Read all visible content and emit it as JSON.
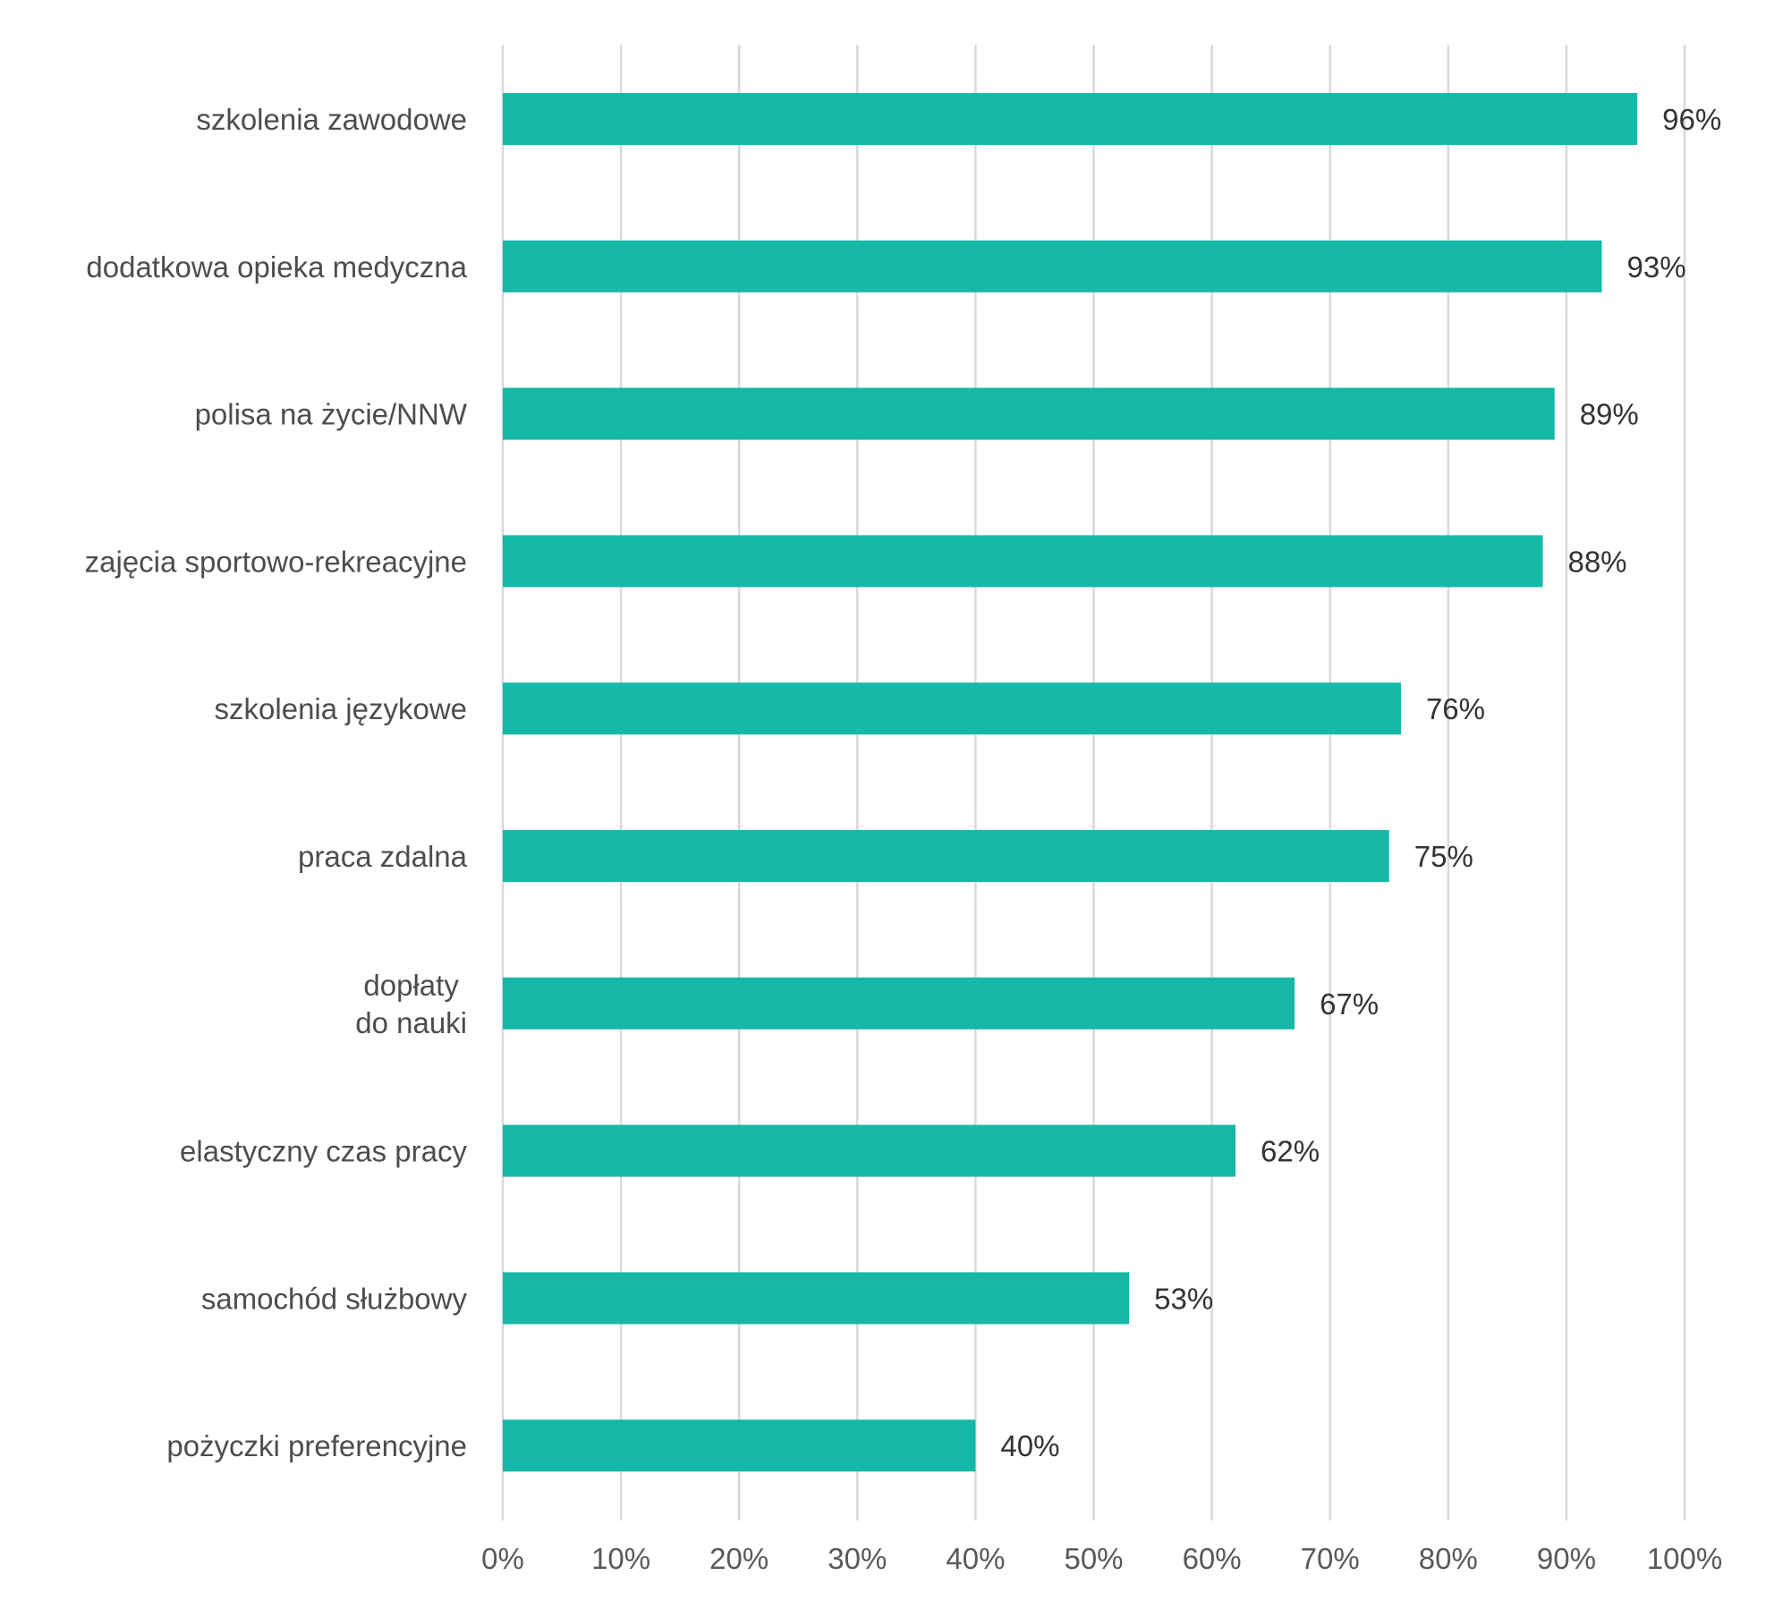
{
  "chart_data": {
    "type": "bar",
    "orientation": "horizontal",
    "categories": [
      "szkolenia zawodowe",
      "dodatkowa opieka medyczna",
      "polisa na życie/NNW",
      "zajęcia sportowo-rekreacyjne",
      "szkolenia językowe",
      "praca zdalna",
      "dopłaty \ndo nauki",
      "elastyczny czas pracy",
      "samochód służbowy",
      "pożyczki preferencyjne"
    ],
    "values": [
      96,
      93,
      89,
      88,
      76,
      75,
      67,
      62,
      53,
      40
    ],
    "value_labels": [
      "96%",
      "93%",
      "89%",
      "88%",
      "76%",
      "75%",
      "67%",
      "62%",
      "53%",
      "40%"
    ],
    "x_ticks": [
      0,
      10,
      20,
      30,
      40,
      50,
      60,
      70,
      80,
      90,
      100
    ],
    "x_tick_labels": [
      "0%",
      "10%",
      "20%",
      "30%",
      "40%",
      "50%",
      "60%",
      "70%",
      "80%",
      "90%",
      "100%"
    ],
    "xlim": [
      0,
      100
    ],
    "grid": "vertical",
    "title": "",
    "xlabel": "",
    "ylabel": "",
    "legend": "none",
    "bar_color": "#16b8a7"
  }
}
